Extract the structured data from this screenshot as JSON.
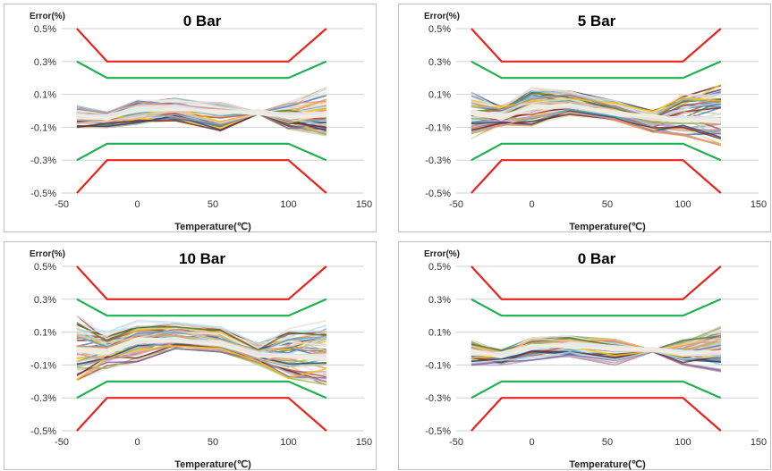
{
  "chart_data": [
    {
      "type": "line",
      "title": "0 Bar",
      "ylabel": "Error(%)",
      "xlabel": "Temperature(℃)",
      "xlim": [
        -50,
        150
      ],
      "ylim": [
        -0.5,
        0.5
      ],
      "xticks": [
        -50,
        0,
        50,
        100,
        150
      ],
      "yticks": [
        -0.5,
        -0.3,
        -0.1,
        0.1,
        0.3,
        0.5
      ],
      "ytick_labels": [
        "-0.5%",
        "-0.3%",
        "-0.1%",
        "0.1%",
        "0.3%",
        "0.5%"
      ],
      "grid": true,
      "limit_lines": [
        {
          "color": "#e8231c",
          "x": [
            -40,
            -20,
            100,
            125
          ],
          "upper": [
            0.5,
            0.3,
            0.3,
            0.5
          ],
          "lower": [
            -0.5,
            -0.3,
            -0.3,
            -0.5
          ]
        },
        {
          "color": "#1db050",
          "x": [
            -40,
            -20,
            100,
            125
          ],
          "upper": [
            0.3,
            0.2,
            0.2,
            0.3
          ],
          "lower": [
            -0.3,
            -0.2,
            -0.2,
            -0.3
          ]
        }
      ],
      "bundle": {
        "x": [
          -40,
          -20,
          0,
          25,
          55,
          80,
          100,
          125
        ],
        "count": 60,
        "upper": [
          0.03,
          -0.01,
          0.065,
          0.075,
          0.05,
          -0.01,
          0.05,
          0.14
        ],
        "lower": [
          -0.1,
          -0.1,
          -0.08,
          -0.06,
          -0.12,
          -0.02,
          -0.11,
          -0.15
        ],
        "center": [
          -0.03,
          -0.04,
          0.01,
          0.02,
          -0.01,
          -0.01,
          -0.03,
          -0.02
        ]
      }
    },
    {
      "type": "line",
      "title": "5 Bar",
      "ylabel": "Error(%)",
      "xlabel": "Temperature(℃)",
      "xlim": [
        -50,
        150
      ],
      "ylim": [
        -0.5,
        0.5
      ],
      "xticks": [
        -50,
        0,
        50,
        100,
        150
      ],
      "yticks": [
        -0.5,
        -0.3,
        -0.1,
        0.1,
        0.3,
        0.5
      ],
      "ytick_labels": [
        "-0.5%",
        "-0.3%",
        "-0.1%",
        "0.1%",
        "0.3%",
        "0.5%"
      ],
      "grid": true,
      "limit_lines": [
        {
          "color": "#e8231c",
          "x": [
            -40,
            -20,
            100,
            125
          ],
          "upper": [
            0.5,
            0.3,
            0.3,
            0.5
          ],
          "lower": [
            -0.5,
            -0.3,
            -0.3,
            -0.5
          ]
        },
        {
          "color": "#1db050",
          "x": [
            -40,
            -20,
            100,
            125
          ],
          "upper": [
            0.3,
            0.2,
            0.2,
            0.3
          ],
          "lower": [
            -0.3,
            -0.2,
            -0.2,
            -0.3
          ]
        }
      ],
      "bundle": {
        "x": [
          -40,
          -20,
          0,
          25,
          55,
          80,
          100,
          125
        ],
        "count": 60,
        "upper": [
          0.11,
          0.03,
          0.14,
          0.12,
          0.06,
          0.0,
          0.1,
          0.16
        ],
        "lower": [
          -0.17,
          -0.09,
          -0.09,
          -0.03,
          -0.06,
          -0.13,
          -0.15,
          -0.21
        ],
        "center": [
          -0.01,
          -0.04,
          0.02,
          0.03,
          -0.01,
          -0.04,
          -0.05,
          -0.06
        ]
      }
    },
    {
      "type": "line",
      "title": "10 Bar",
      "ylabel": "Error(%)",
      "xlabel": "Temperature(℃)",
      "xlim": [
        -50,
        150
      ],
      "ylim": [
        -0.5,
        0.5
      ],
      "xticks": [
        -50,
        0,
        50,
        100,
        150
      ],
      "yticks": [
        -0.5,
        -0.3,
        -0.1,
        0.1,
        0.3,
        0.5
      ],
      "ytick_labels": [
        "-0.5%",
        "-0.3%",
        "-0.1%",
        "0.1%",
        "0.3%",
        "0.5%"
      ],
      "grid": true,
      "limit_lines": [
        {
          "color": "#e8231c",
          "x": [
            -40,
            -20,
            100,
            125
          ],
          "upper": [
            0.5,
            0.3,
            0.3,
            0.5
          ],
          "lower": [
            -0.5,
            -0.3,
            -0.3,
            -0.5
          ]
        },
        {
          "color": "#1db050",
          "x": [
            -40,
            -20,
            100,
            125
          ],
          "upper": [
            0.3,
            0.2,
            0.2,
            0.3
          ],
          "lower": [
            -0.3,
            -0.2,
            -0.2,
            -0.3
          ]
        }
      ],
      "bundle": {
        "x": [
          -40,
          -20,
          0,
          25,
          55,
          80,
          100,
          125
        ],
        "count": 60,
        "upper": [
          0.2,
          0.1,
          0.17,
          0.16,
          0.13,
          0.03,
          0.12,
          0.17
        ],
        "lower": [
          -0.19,
          -0.12,
          -0.08,
          0.0,
          -0.02,
          -0.1,
          -0.18,
          -0.22
        ],
        "center": [
          -0.01,
          -0.02,
          0.05,
          0.05,
          0.03,
          -0.04,
          -0.04,
          -0.05
        ]
      }
    },
    {
      "type": "line",
      "title": "0 Bar",
      "ylabel": "Error(%)",
      "xlabel": "Temperature(℃)",
      "xlim": [
        -50,
        150
      ],
      "ylim": [
        -0.5,
        0.5
      ],
      "xticks": [
        -50,
        0,
        50,
        100,
        150
      ],
      "yticks": [
        -0.5,
        -0.3,
        -0.1,
        0.1,
        0.3,
        0.5
      ],
      "ytick_labels": [
        "-0.5%",
        "-0.3%",
        "-0.1%",
        "0.1%",
        "0.3%",
        "0.5%"
      ],
      "grid": true,
      "limit_lines": [
        {
          "color": "#e8231c",
          "x": [
            -40,
            -20,
            100,
            125
          ],
          "upper": [
            0.5,
            0.3,
            0.3,
            0.5
          ],
          "lower": [
            -0.5,
            -0.3,
            -0.3,
            -0.5
          ]
        },
        {
          "color": "#1db050",
          "x": [
            -40,
            -20,
            100,
            125
          ],
          "upper": [
            0.3,
            0.2,
            0.2,
            0.3
          ],
          "lower": [
            -0.3,
            -0.2,
            -0.2,
            -0.3
          ]
        }
      ],
      "bundle": {
        "x": [
          -40,
          -20,
          0,
          25,
          55,
          80,
          100,
          125
        ],
        "count": 60,
        "upper": [
          0.05,
          -0.01,
          0.065,
          0.075,
          0.055,
          -0.01,
          0.05,
          0.14
        ],
        "lower": [
          -0.1,
          -0.1,
          -0.07,
          -0.05,
          -0.1,
          -0.02,
          -0.1,
          -0.14
        ],
        "center": [
          -0.02,
          -0.04,
          0.01,
          0.02,
          0.0,
          -0.01,
          -0.03,
          -0.02
        ]
      }
    }
  ],
  "bundle_palette": [
    "#4f81bd",
    "#c0504d",
    "#9bbb59",
    "#8064a2",
    "#4bacc6",
    "#f79646",
    "#2c4d75",
    "#772c2a",
    "#5f7530",
    "#ffc000",
    "#a5a5a5",
    "#b7dee8",
    "#fac090",
    "#d99694",
    "#c3d69b",
    "#b3a2c7",
    "#93cddd",
    "#e6b9b8",
    "#d9d9d9",
    "#f2dcdb",
    "#dbeef4",
    "#ebf1de",
    "#fde9d9"
  ]
}
